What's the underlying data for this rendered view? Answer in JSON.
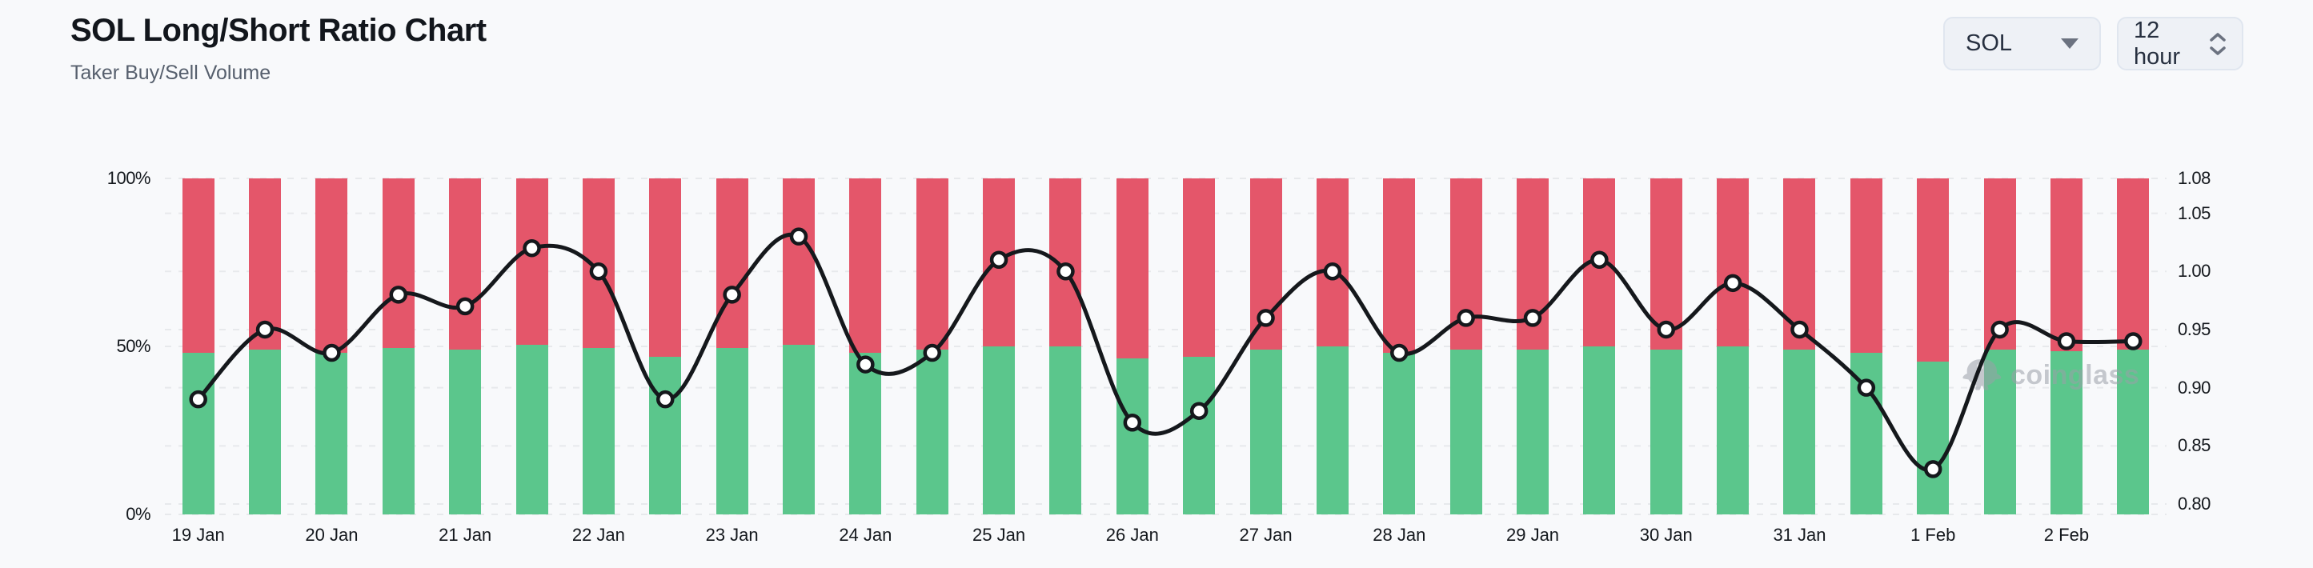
{
  "header": {
    "title": "SOL Long/Short Ratio Chart",
    "subtitle": "Taker Buy/Sell Volume"
  },
  "controls": {
    "symbol_select": {
      "value": "SOL"
    },
    "interval_select": {
      "value": "12 hour"
    }
  },
  "watermark": {
    "text": "coinglass"
  },
  "chart_data": {
    "type": "bar",
    "subtype": "percent-stacked-columns-with-ratio-line",
    "title": "SOL Long/Short Ratio Chart",
    "categories": [
      "19 Jan",
      "20 Jan",
      "21 Jan",
      "22 Jan",
      "23 Jan",
      "24 Jan",
      "25 Jan",
      "26 Jan",
      "27 Jan",
      "28 Jan",
      "29 Jan",
      "30 Jan",
      "31 Jan",
      "1 Feb",
      "2 Feb"
    ],
    "bars_per_category": 2,
    "series": [
      {
        "name": "Taker buy volume %",
        "type": "bar",
        "stack": "volume",
        "color": "#5bc68c",
        "values": [
          48,
          49,
          48,
          49.5,
          49,
          50.5,
          49.5,
          47,
          49.5,
          50.5,
          48,
          49,
          50,
          50,
          46.5,
          47,
          49,
          50,
          48,
          49,
          49,
          50,
          49,
          50,
          49,
          48,
          45.5,
          49,
          48.5,
          49
        ]
      },
      {
        "name": "Taker sell volume %",
        "type": "bar",
        "stack": "volume",
        "color": "#e4566a",
        "values": [
          52,
          51,
          52,
          50.5,
          51,
          49.5,
          50.5,
          53,
          50.5,
          49.5,
          52,
          51,
          50,
          50,
          53.5,
          53,
          51,
          50,
          52,
          51,
          51,
          50,
          51,
          50,
          51,
          52,
          54.5,
          51,
          51.5,
          51
        ]
      },
      {
        "name": "Long/Short ratio",
        "type": "line",
        "axis": "right",
        "color": "#15181c",
        "marker": "circle",
        "values": [
          0.89,
          0.95,
          0.93,
          0.98,
          0.97,
          1.02,
          1.0,
          0.89,
          0.98,
          1.03,
          0.92,
          0.93,
          1.01,
          1.0,
          0.87,
          0.88,
          0.96,
          1.0,
          0.93,
          0.96,
          0.96,
          1.01,
          0.95,
          0.99,
          0.95,
          0.9,
          0.83,
          0.95,
          0.94,
          0.94
        ]
      }
    ],
    "left_axis": {
      "ticks": [
        "100%",
        "50%",
        "0%"
      ],
      "min": 0,
      "max": 100
    },
    "right_axis": {
      "ticks": [
        "1.08",
        "1.05",
        "1.00",
        "0.95",
        "0.90",
        "0.85",
        "0.80"
      ],
      "min": 0.8,
      "max": 1.08
    },
    "grid": {
      "style": "dashed",
      "color": "#e7e9ec"
    },
    "legend": false
  }
}
